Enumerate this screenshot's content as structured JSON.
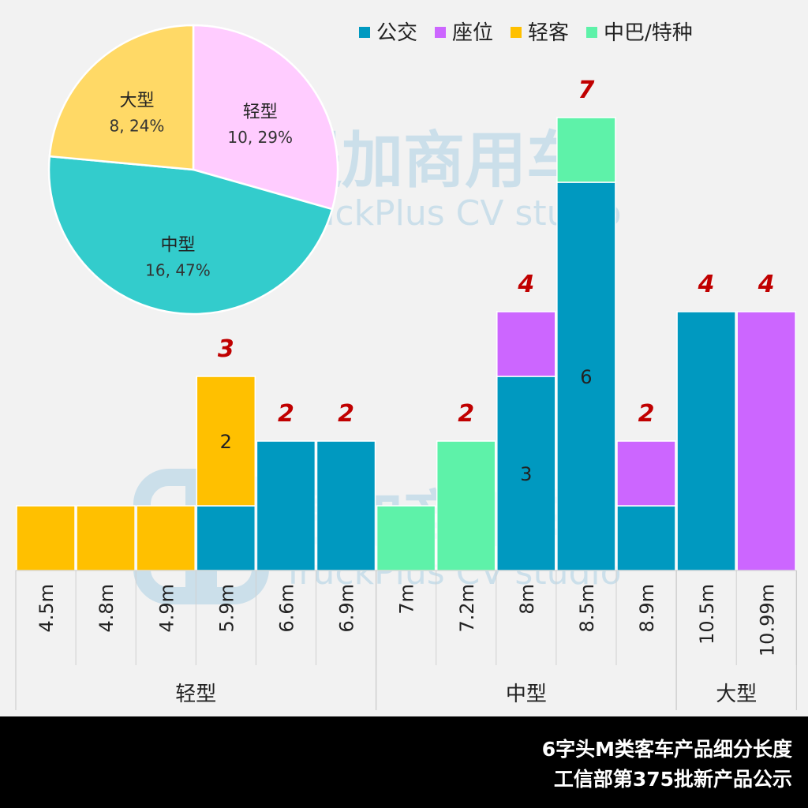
{
  "chart_data": [
    {
      "type": "bar",
      "stacked": true,
      "categories": [
        "4.5m",
        "4.8m",
        "4.9m",
        "5.9m",
        "6.6m",
        "6.9m",
        "7m",
        "7.2m",
        "8m",
        "8.5m",
        "8.9m",
        "10.5m",
        "10.99m"
      ],
      "groups": [
        {
          "label": "轻型",
          "categories": [
            "4.5m",
            "4.8m",
            "4.9m",
            "5.9m",
            "6.6m",
            "6.9m"
          ]
        },
        {
          "label": "中型",
          "categories": [
            "7m",
            "7.2m",
            "8m",
            "8.5m",
            "8.9m"
          ]
        },
        {
          "label": "大型",
          "categories": [
            "10.5m",
            "10.99m"
          ]
        }
      ],
      "series": [
        {
          "name": "公交",
          "color": "#0099c0",
          "values": [
            0,
            0,
            0,
            1,
            2,
            2,
            0,
            0,
            3,
            6,
            1,
            4,
            0
          ]
        },
        {
          "name": "座位",
          "color": "#cc66ff",
          "values": [
            0,
            0,
            0,
            0,
            0,
            0,
            0,
            0,
            1,
            0,
            1,
            0,
            4
          ]
        },
        {
          "name": "轻客",
          "color": "#ffc000",
          "values": [
            1,
            1,
            1,
            2,
            0,
            0,
            0,
            0,
            0,
            0,
            0,
            0,
            0
          ]
        },
        {
          "name": "中巴/特种",
          "color": "#5ef2a9",
          "values": [
            0,
            0,
            0,
            0,
            0,
            0,
            1,
            2,
            0,
            1,
            0,
            0,
            0
          ]
        }
      ],
      "segment_labels": [
        {
          "category": "5.9m",
          "series": "轻客",
          "text": "2"
        },
        {
          "category": "8m",
          "series": "公交",
          "text": "3"
        },
        {
          "category": "8.5m",
          "series": "公交",
          "text": "6"
        }
      ],
      "totals": [
        {
          "category": "5.9m",
          "text": "3"
        },
        {
          "category": "6.6m",
          "text": "2"
        },
        {
          "category": "6.9m",
          "text": "2"
        },
        {
          "category": "7.2m",
          "text": "2"
        },
        {
          "category": "8m",
          "text": "4"
        },
        {
          "category": "8.5m",
          "text": "7"
        },
        {
          "category": "8.9m",
          "text": "2"
        },
        {
          "category": "10.5m",
          "text": "4"
        },
        {
          "category": "10.99m",
          "text": "4"
        }
      ],
      "total_color": "#c00000",
      "ylim": [
        0,
        7
      ],
      "legend_position": "top-right",
      "grid": false
    },
    {
      "type": "pie",
      "slices": [
        {
          "label": "轻型",
          "value": 10,
          "percent": 29,
          "text": "10, 29%",
          "color": "#ffccff"
        },
        {
          "label": "中型",
          "value": 16,
          "percent": 47,
          "text": "16, 47%",
          "color": "#33cccc"
        },
        {
          "label": "大型",
          "value": 8,
          "percent": 24,
          "text": "8, 24%",
          "color": "#ffd966"
        }
      ]
    }
  ],
  "watermark": {
    "brand": "提加商用车",
    "sub": "TruckPlus CV studio",
    "color": "#9ec9e2"
  },
  "footer": {
    "title": "6字头M类客车产品细分长度",
    "subtitle": "工信部第375批新产品公示"
  }
}
